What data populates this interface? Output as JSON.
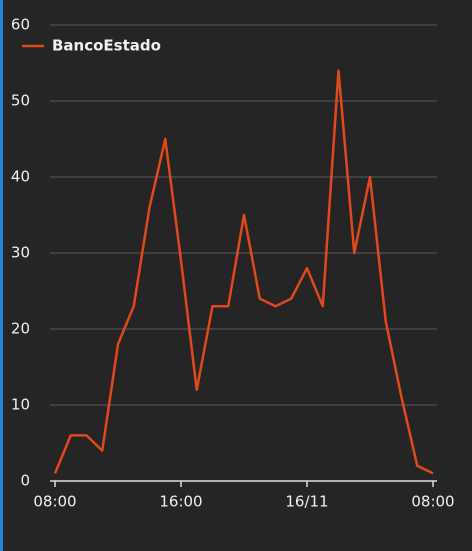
{
  "chart_data": {
    "type": "line",
    "categories": [
      "08:00",
      null,
      null,
      null,
      null,
      null,
      null,
      null,
      "16:00",
      null,
      null,
      null,
      null,
      null,
      null,
      null,
      "16/11",
      null,
      null,
      null,
      null,
      null,
      null,
      null,
      "08:00"
    ],
    "series": [
      {
        "name": "BancoEstado",
        "color": "#e0491b",
        "values": [
          1,
          6,
          6,
          4,
          18,
          23,
          36,
          45,
          29,
          12,
          23,
          23,
          35,
          24,
          23,
          24,
          28,
          23,
          54,
          30,
          40,
          21,
          11,
          2,
          1
        ]
      }
    ],
    "ylim": [
      0,
      60
    ],
    "yticks": [
      0,
      10,
      20,
      30,
      40,
      50,
      60
    ],
    "grid": true,
    "legend": "top-left"
  }
}
